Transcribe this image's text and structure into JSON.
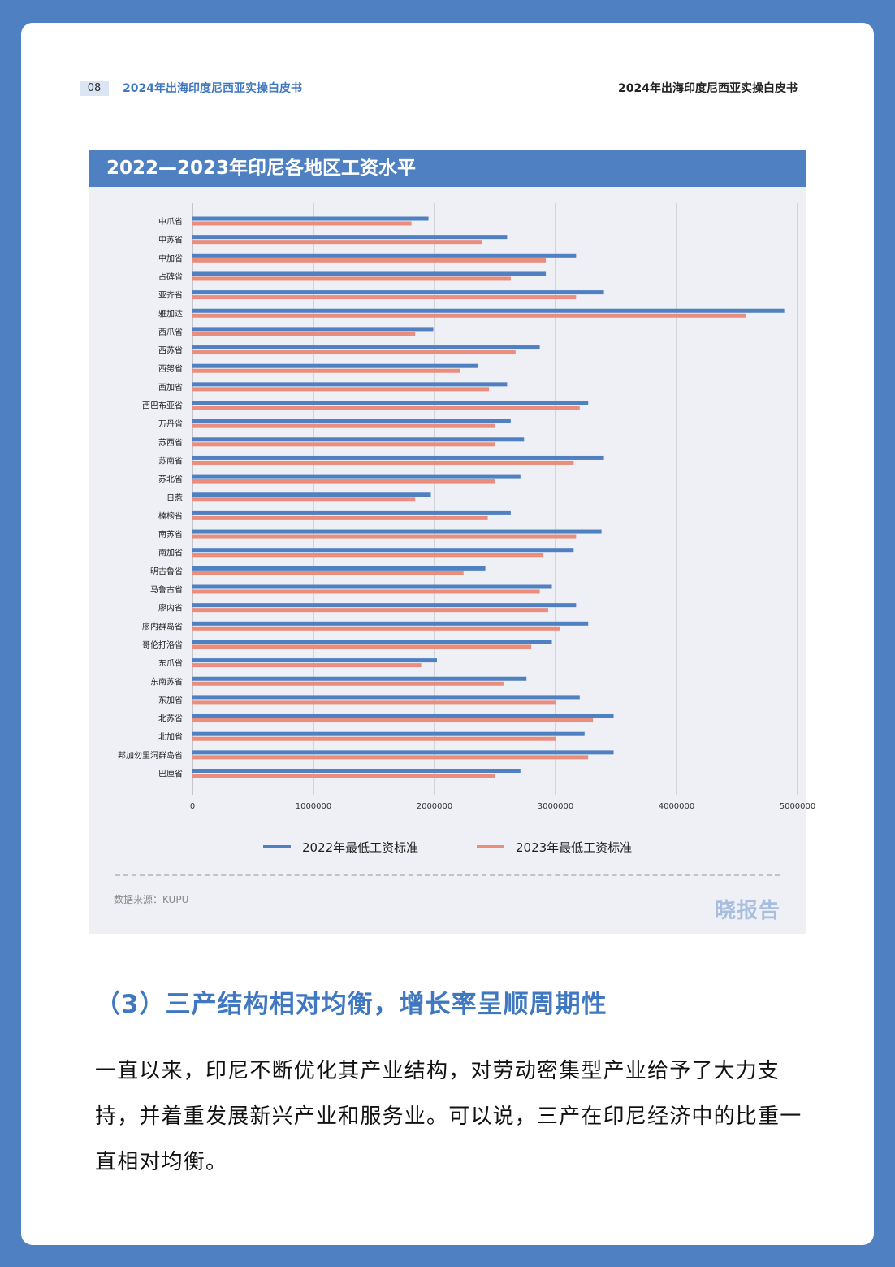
{
  "header": {
    "page_number": "08",
    "left_title": "2024年出海印度尼西亚实操白皮书",
    "right_title": "2024年出海印度尼西亚实操白皮书"
  },
  "chart_banner": {
    "title": "2022—2023年印尼各地区工资水平"
  },
  "chart_data": {
    "type": "bar",
    "orientation": "horizontal",
    "title": "2022—2023年印尼各地区工资水平",
    "categories": [
      "中爪省",
      "中苏省",
      "中加省",
      "占碑省",
      "亚齐省",
      "雅加达",
      "西爪省",
      "西苏省",
      "西努省",
      "西加省",
      "西巴布亚省",
      "万丹省",
      "苏西省",
      "苏南省",
      "苏北省",
      "日惹",
      "楠榜省",
      "南苏省",
      "南加省",
      "明古鲁省",
      "马鲁古省",
      "廖内省",
      "廖内群岛省",
      "哥伦打洛省",
      "东爪省",
      "东南苏省",
      "东加省",
      "北苏省",
      "北加省",
      "邦加勿里洞群岛省",
      "巴厘省"
    ],
    "series": [
      {
        "name": "2022年最低工资标准",
        "color": "#4f80c1",
        "values": [
          1950000,
          2600000,
          3170000,
          2920000,
          3400000,
          4890000,
          1990000,
          2870000,
          2360000,
          2600000,
          3270000,
          2630000,
          2740000,
          3400000,
          2710000,
          1970000,
          2630000,
          3380000,
          3150000,
          2420000,
          2970000,
          3170000,
          3270000,
          2970000,
          2020000,
          2760000,
          3200000,
          3480000,
          3240000,
          3480000,
          2710000
        ]
      },
      {
        "name": "2023年最低工资标准",
        "color": "#ea8d7c",
        "values": [
          1810000,
          2390000,
          2920000,
          2630000,
          3170000,
          4570000,
          1840000,
          2670000,
          2210000,
          2450000,
          3200000,
          2500000,
          2500000,
          3150000,
          2500000,
          1840000,
          2440000,
          3170000,
          2900000,
          2240000,
          2870000,
          2940000,
          3040000,
          2800000,
          1890000,
          2570000,
          3000000,
          3310000,
          3000000,
          3270000,
          2500000
        ]
      }
    ],
    "x_ticks": [
      "0",
      "1000000",
      "2000000",
      "3000000",
      "4000000",
      "5000000"
    ],
    "xlim": [
      0,
      5000000
    ],
    "grid": true,
    "legend_position": "bottom"
  },
  "chart_footer": {
    "source": "数据来源：KUPU",
    "logo": "晓报告"
  },
  "section": {
    "heading": "（3）三产结构相对均衡，增长率呈顺周期性",
    "paragraph": "一直以来，印尼不断优化其产业结构，对劳动密集型产业给予了大力支持，并着重发展新兴产业和服务业。可以说，三产在印尼经济中的比重一直相对均衡。"
  }
}
